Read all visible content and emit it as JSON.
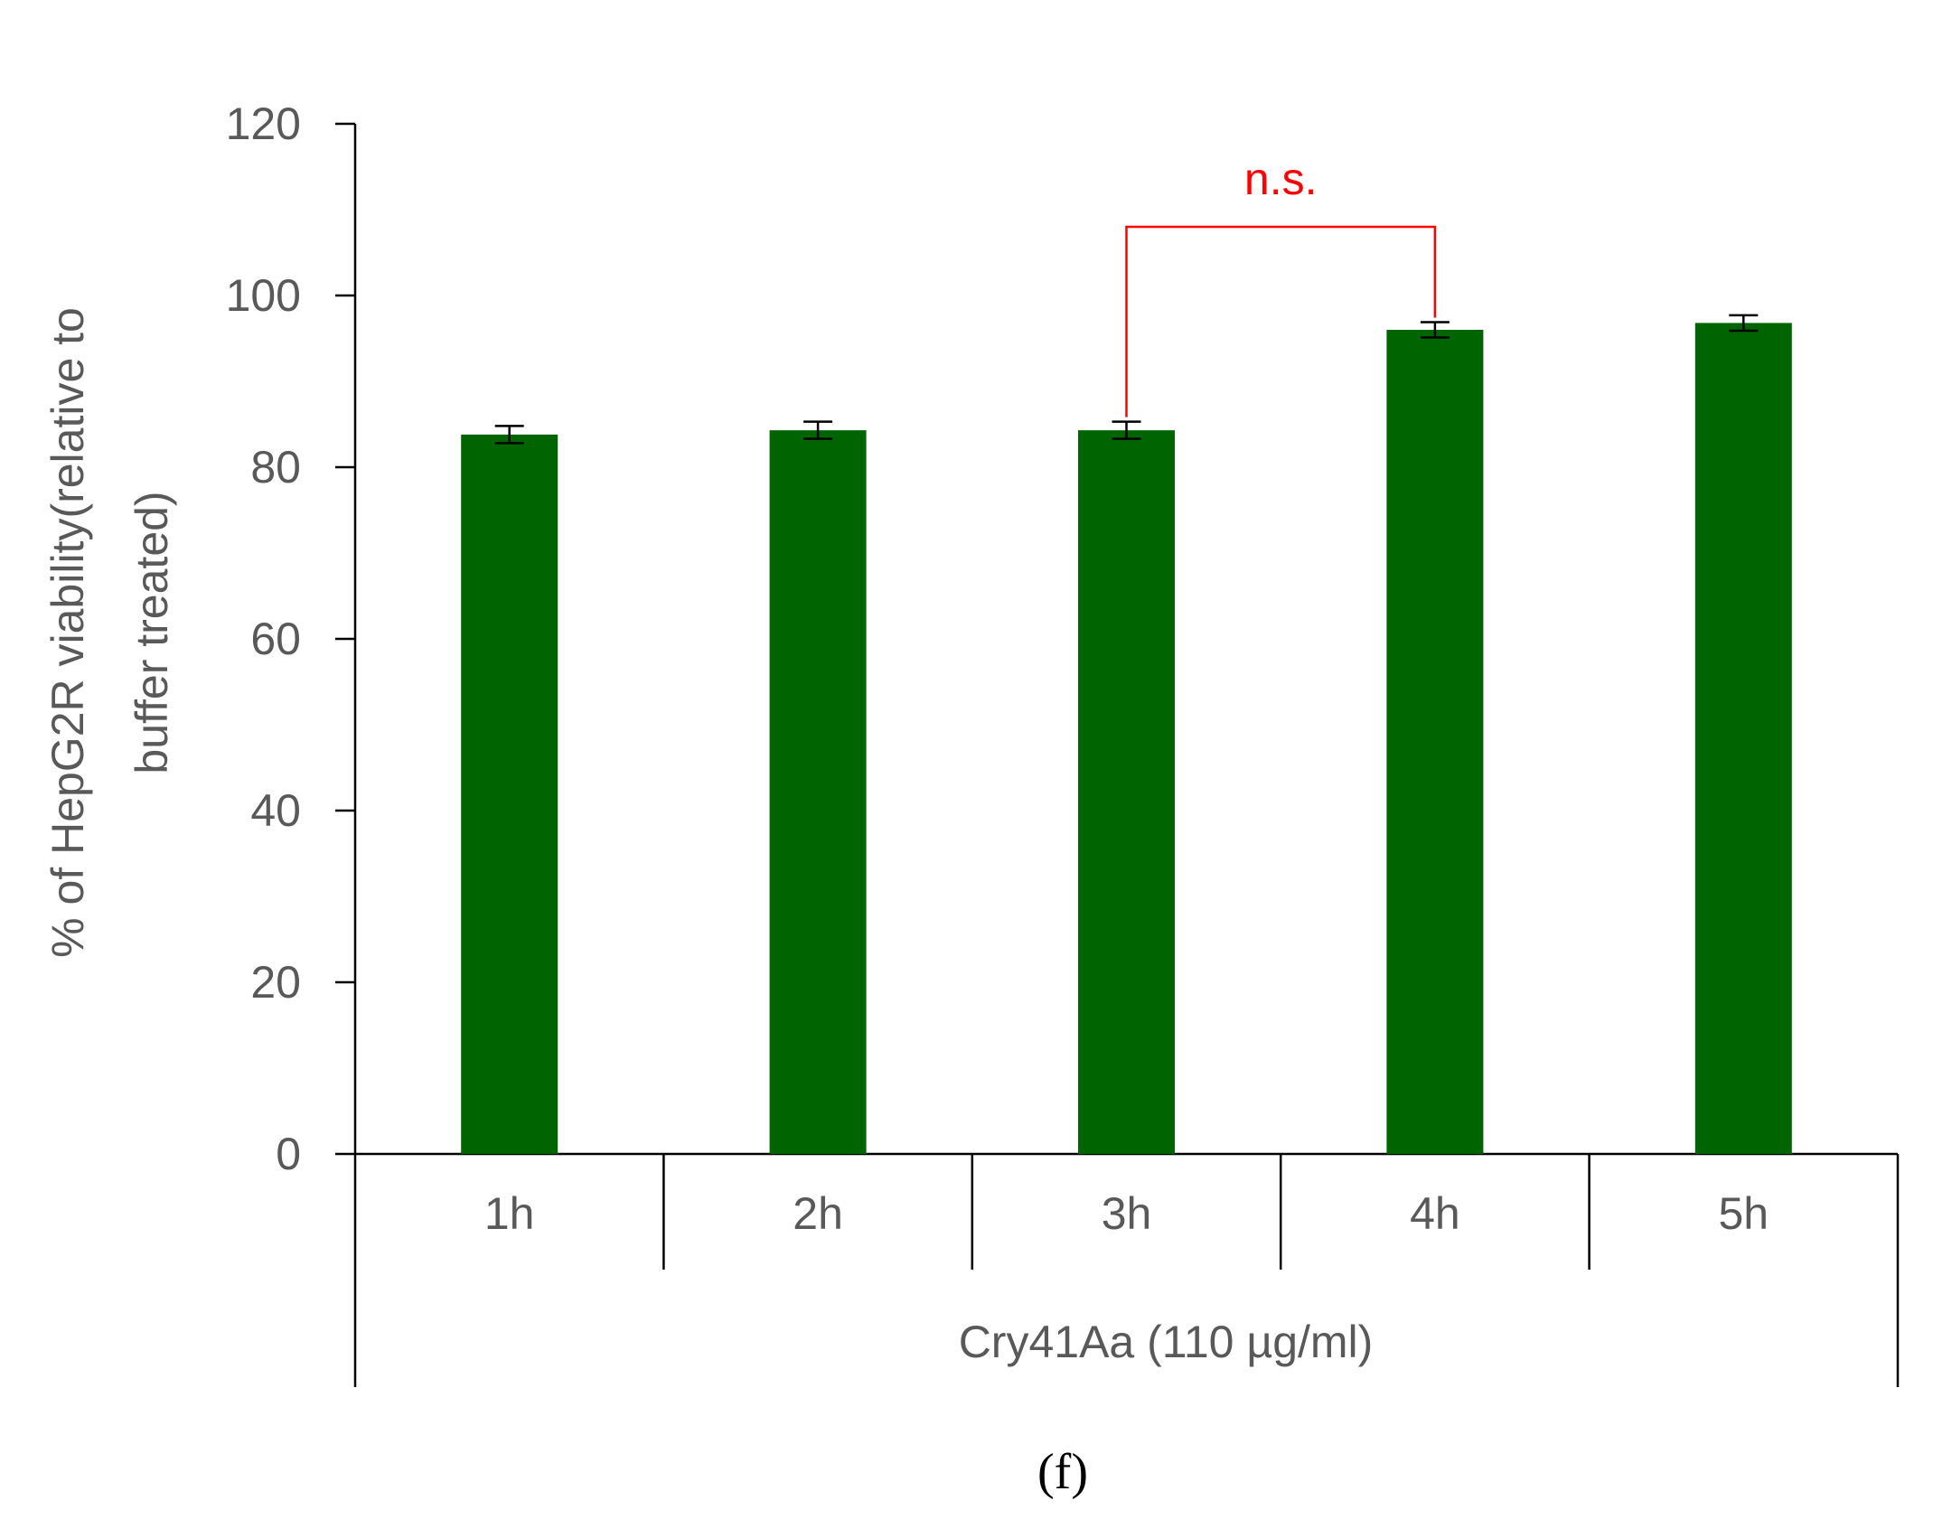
{
  "chart_data": {
    "type": "bar",
    "categories": [
      "1h",
      "2h",
      "3h",
      "4h",
      "5h"
    ],
    "values": [
      83.8,
      84.3,
      84.3,
      96.0,
      96.8
    ],
    "errors": [
      1.0,
      1.0,
      1.0,
      0.9,
      0.9
    ],
    "ylabel_lines": [
      "% of HepG2R viability(relative to",
      "buffer treated)"
    ],
    "group_label": "Cry41Aa (110 µg/ml)",
    "panel_label": "(f)",
    "ylim": [
      0,
      120
    ],
    "yticks": [
      "0",
      "20",
      "40",
      "60",
      "80",
      "100",
      "120"
    ],
    "grid": false,
    "bar_color": "#006400",
    "significance": {
      "from": "3h",
      "to": "4h",
      "label": "n.s.",
      "bracket_top": 108,
      "color": "#FF0000"
    }
  }
}
